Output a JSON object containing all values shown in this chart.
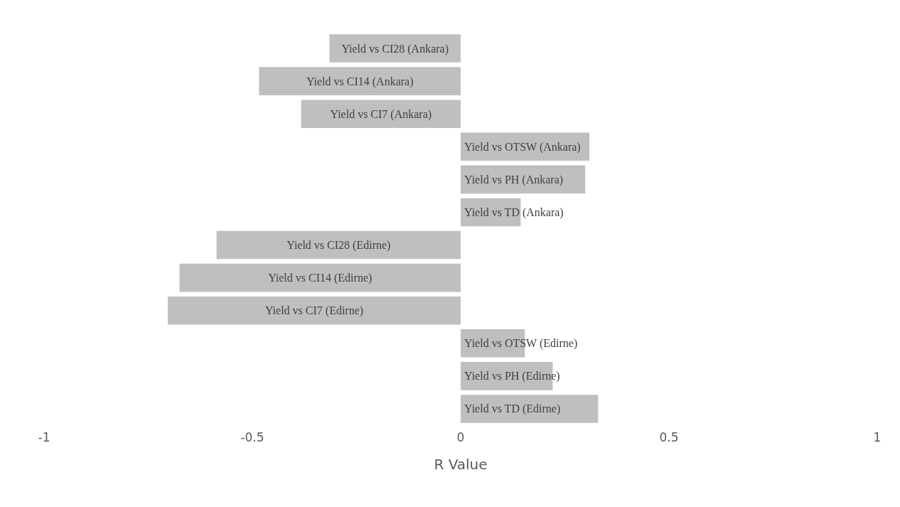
{
  "chart_data": {
    "type": "bar",
    "orientation": "horizontal",
    "xlabel": "R Value",
    "categories": [
      "Yield vs CI28 (Ankara)",
      "Yield vs CI14 (Ankara)",
      "Yield vs CI7 (Ankara)",
      "Yield vs OTSW (Ankara)",
      "Yield vs PH (Ankara)",
      "Yield vs TD (Ankara)",
      "Yield vs CI28 (Edirne)",
      "Yield vs CI14 (Edirne)",
      "Yield vs CI7 (Edirne)",
      "Yield vs OTSW (Edirne)",
      "Yield vs PH (Edirne)",
      "Yield vs TD (Edirne)"
    ],
    "values": [
      -0.315,
      -0.484,
      -0.383,
      0.309,
      0.299,
      0.144,
      -0.586,
      -0.675,
      -0.703,
      0.154,
      0.221,
      0.33
    ],
    "color": "#bfbfbf",
    "xlim": [
      -1,
      1
    ],
    "xticks": [
      -1,
      -0.5,
      0,
      0.5,
      1
    ],
    "grid": false
  }
}
